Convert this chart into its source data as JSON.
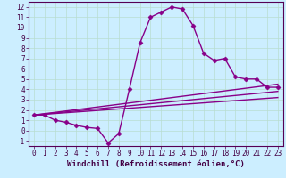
{
  "background_color": "#cceeff",
  "grid_color": "#b8ddd0",
  "line_color": "#880088",
  "marker": "D",
  "marker_size": 2.5,
  "line_width": 1.0,
  "xlabel": "Windchill (Refroidissement éolien,°C)",
  "xlabel_fontsize": 6.5,
  "xlim": [
    -0.5,
    23.5
  ],
  "ylim": [
    -1.5,
    12.5
  ],
  "xticks": [
    0,
    1,
    2,
    3,
    4,
    5,
    6,
    7,
    8,
    9,
    10,
    11,
    12,
    13,
    14,
    15,
    16,
    17,
    18,
    19,
    20,
    21,
    22,
    23
  ],
  "yticks": [
    -1,
    0,
    1,
    2,
    3,
    4,
    5,
    6,
    7,
    8,
    9,
    10,
    11,
    12
  ],
  "tick_fontsize": 5.5,
  "main_x": [
    0,
    1,
    2,
    3,
    4,
    5,
    6,
    7,
    8,
    9,
    10,
    11,
    12,
    13,
    14,
    15,
    16,
    17,
    18,
    19,
    20,
    21,
    22,
    23
  ],
  "main_y": [
    1.5,
    1.5,
    1.0,
    0.8,
    0.5,
    0.3,
    0.2,
    -1.2,
    -0.3,
    4.0,
    8.5,
    11.0,
    11.5,
    12.0,
    11.8,
    10.2,
    7.5,
    6.8,
    7.0,
    5.2,
    5.0,
    5.0,
    4.2,
    4.2
  ],
  "line2_x": [
    0,
    23
  ],
  "line2_y": [
    1.5,
    4.5
  ],
  "line3_x": [
    0,
    23
  ],
  "line3_y": [
    1.5,
    3.8
  ],
  "line4_x": [
    0,
    23
  ],
  "line4_y": [
    1.5,
    3.2
  ]
}
